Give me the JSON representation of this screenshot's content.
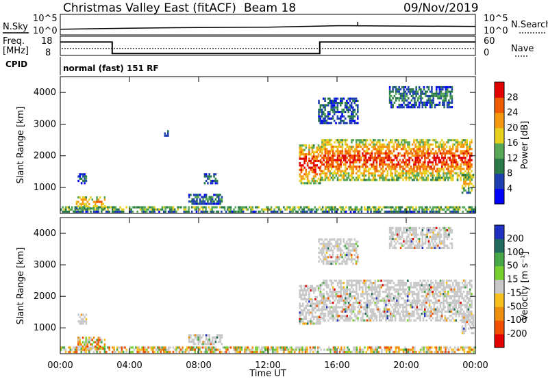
{
  "header": {
    "title": "Christmas Valley East (fitACF)",
    "beam": "Beam 18",
    "date": "09/Nov/2019"
  },
  "noise_panel": {
    "left_label": "N.Sky",
    "left_ticks": [
      "10^5",
      "10^0"
    ],
    "right_label": "N.Search",
    "right_ticks": [
      "10^5",
      "10^0"
    ]
  },
  "freq_panel": {
    "left_label_1": "Freq.",
    "left_label_2": "[MHz]",
    "left_ticks": [
      "18",
      "8"
    ],
    "right_label": "Nave",
    "right_ticks": [
      "60",
      "0"
    ]
  },
  "cpid": {
    "label": "CPID",
    "text": "normal (fast) 151 RF"
  },
  "power_panel": {
    "ylabel": "Slant Range [km]",
    "yticks": [
      "4000",
      "3000",
      "2000",
      "1000"
    ],
    "colorbar_label": "Power [dB]",
    "colorbar_ticks": [
      "28",
      "24",
      "20",
      "16",
      "12",
      "8",
      "4"
    ],
    "colors": [
      "#0000ff",
      "#1f3fb0",
      "#2a7a4a",
      "#58a858",
      "#e8d020",
      "#f59a10",
      "#f05a00",
      "#e00000"
    ]
  },
  "velocity_panel": {
    "ylabel": "Slant Range [km]",
    "yticks": [
      "4000",
      "3000",
      "2000",
      "1000"
    ],
    "colorbar_label": "Velocity [m s⁻¹]",
    "colorbar_ticks": [
      "200",
      "100",
      "50",
      "15",
      "-15",
      "-50",
      "-100",
      "-200"
    ],
    "colors": [
      "#2030c0",
      "#206a60",
      "#48a848",
      "#78d030",
      "#c8c8c8",
      "#f5c020",
      "#f09010",
      "#f05000",
      "#e00000"
    ]
  },
  "xaxis": {
    "label": "Time UT",
    "ticks": [
      "00:00",
      "04:00",
      "08:00",
      "12:00",
      "16:00",
      "20:00",
      "00:00"
    ]
  },
  "chart_data": [
    {
      "type": "line",
      "title": "Christmas Valley East (fitACF)",
      "xlabel": "",
      "ylabel": "N.Sky",
      "x": [
        "00:00",
        "04:00",
        "08:00",
        "12:00",
        "16:00",
        "20:00",
        "00:00"
      ],
      "series": [
        {
          "name": "N.Sky",
          "values": [
            1.0,
            1.3,
            1.5,
            1.6,
            2.0,
            1.9,
            1.8
          ]
        }
      ],
      "annotations": [
        "spike near 17:00 UT"
      ],
      "ylim": [
        "10^0",
        "10^5"
      ]
    },
    {
      "type": "line",
      "xlabel": "",
      "ylabel": "Freq. [MHz]",
      "x": [
        0,
        3,
        3,
        15,
        15,
        24
      ],
      "series": [
        {
          "name": "Freq.",
          "values": [
            15,
            15,
            9,
            9,
            15,
            15
          ]
        }
      ],
      "ylim": [
        8,
        18
      ]
    },
    {
      "type": "heatmap",
      "title": "",
      "xlabel": "Time UT",
      "ylabel": "Slant Range [km]",
      "xlim": [
        0,
        24
      ],
      "ylim": [
        180,
        4500
      ],
      "colorbar": "Power [dB]",
      "colorbar_ticks": [
        4,
        8,
        12,
        16,
        20,
        24,
        28
      ],
      "regions": [
        {
          "t0": 0.0,
          "t1": 24.0,
          "r0": 200,
          "r1": 400,
          "level": 0.45
        },
        {
          "t0": 0.9,
          "t1": 2.6,
          "r0": 300,
          "r1": 700,
          "level": 0.65
        },
        {
          "t0": 1.0,
          "t1": 1.5,
          "r0": 1100,
          "r1": 1400,
          "level": 0.25
        },
        {
          "t0": 7.4,
          "t1": 9.3,
          "r0": 450,
          "r1": 750,
          "level": 0.3
        },
        {
          "t0": 8.3,
          "t1": 9.1,
          "r0": 1100,
          "r1": 1400,
          "level": 0.25
        },
        {
          "t0": 13.8,
          "t1": 15.0,
          "r0": 1100,
          "r1": 2300,
          "level": 0.85
        },
        {
          "t0": 15.0,
          "t1": 23.8,
          "r0": 1200,
          "r1": 2500,
          "level": 0.8
        },
        {
          "t0": 14.9,
          "t1": 17.2,
          "r0": 3000,
          "r1": 3800,
          "level": 0.25
        },
        {
          "t0": 19.0,
          "t1": 22.6,
          "r0": 3500,
          "r1": 4200,
          "level": 0.3
        },
        {
          "t0": 23.2,
          "t1": 23.9,
          "r0": 800,
          "r1": 1400,
          "level": 0.55
        },
        {
          "t0": 6.0,
          "t1": 6.2,
          "r0": 2600,
          "r1": 2800,
          "level": 0.2
        }
      ]
    },
    {
      "type": "heatmap",
      "title": "",
      "xlabel": "Time UT",
      "ylabel": "Slant Range [km]",
      "xlim": [
        0,
        24
      ],
      "ylim": [
        180,
        4500
      ],
      "colorbar": "Velocity [m s⁻¹]",
      "colorbar_ticks": [
        200,
        100,
        50,
        15,
        -15,
        -50,
        -100,
        -200
      ],
      "regions": [
        {
          "t0": 0.0,
          "t1": 24.0,
          "r0": 200,
          "r1": 400,
          "level": 0.55
        },
        {
          "t0": 0.9,
          "t1": 2.6,
          "r0": 300,
          "r1": 700,
          "level": 0.6
        },
        {
          "t0": 1.0,
          "t1": 1.5,
          "r0": 1100,
          "r1": 1400,
          "level": 0.5
        },
        {
          "t0": 7.4,
          "t1": 9.3,
          "r0": 450,
          "r1": 750,
          "level": 0.5
        },
        {
          "t0": 13.8,
          "t1": 15.0,
          "r0": 1100,
          "r1": 2300,
          "level": 0.5
        },
        {
          "t0": 15.0,
          "t1": 23.8,
          "r0": 1200,
          "r1": 2500,
          "level": 0.5
        },
        {
          "t0": 14.9,
          "t1": 17.2,
          "r0": 3000,
          "r1": 3800,
          "level": 0.5
        },
        {
          "t0": 19.0,
          "t1": 22.6,
          "r0": 3500,
          "r1": 4200,
          "level": 0.5
        },
        {
          "t0": 23.2,
          "t1": 23.9,
          "r0": 800,
          "r1": 1400,
          "level": 0.5
        }
      ]
    }
  ]
}
